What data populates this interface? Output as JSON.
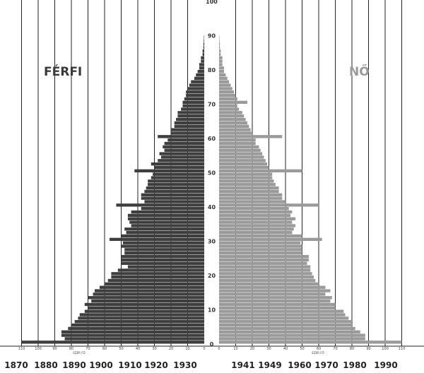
{
  "colors": {
    "male": "#3e3e3e",
    "female": "#9a9a9a",
    "grid": "#222222",
    "male_label": "#3a3a3a",
    "female_label": "#9a9a9a",
    "year_highlight": "#a3a3a3"
  },
  "chart_data": {
    "type": "bar",
    "orientation": "horizontal population pyramid",
    "labels": {
      "left": "FÉRFI",
      "right": "NŐ"
    },
    "y_ticks": [
      0,
      10,
      20,
      30,
      40,
      50,
      60,
      70,
      80,
      90,
      100
    ],
    "ylim": [
      0,
      100
    ],
    "x_ticks_left": [
      "0",
      "10",
      "20",
      "30",
      "40",
      "50",
      "60",
      "70",
      "80",
      "90",
      "100",
      "110"
    ],
    "x_ticks_right": [
      "0",
      "10",
      "20",
      "30",
      "40",
      "50",
      "60",
      "70",
      "80",
      "90",
      "100",
      "110"
    ],
    "x_unit_label": "EZER FŐ",
    "xlim": [
      0,
      110
    ],
    "years_left": [
      "1870",
      "1880",
      "1890",
      "1900",
      "1910",
      "1920",
      "1930"
    ],
    "years_right": [
      "1941",
      "1949",
      "1960",
      "1970",
      "1980",
      "1990"
    ],
    "highlighted_year": "1890",
    "ages": [
      0,
      1,
      2,
      3,
      4,
      5,
      6,
      7,
      8,
      9,
      10,
      11,
      12,
      13,
      14,
      15,
      16,
      17,
      18,
      19,
      20,
      21,
      22,
      23,
      24,
      25,
      26,
      27,
      28,
      29,
      30,
      31,
      32,
      33,
      34,
      35,
      36,
      37,
      38,
      39,
      40,
      41,
      42,
      43,
      44,
      45,
      46,
      47,
      48,
      49,
      50,
      51,
      52,
      53,
      54,
      55,
      56,
      57,
      58,
      59,
      60,
      61,
      62,
      63,
      64,
      65,
      66,
      67,
      68,
      69,
      70,
      71,
      72,
      73,
      74,
      75,
      76,
      77,
      78,
      79,
      80,
      81,
      82,
      83,
      84,
      85,
      86,
      87,
      88,
      89
    ],
    "series": [
      {
        "side": "left",
        "values": [
          110,
          84,
          86,
          86,
          82,
          80,
          78,
          76,
          75,
          72,
          70,
          72,
          68,
          70,
          67,
          66,
          63,
          60,
          58,
          56,
          56,
          52,
          46,
          50,
          50,
          50,
          48,
          48,
          50,
          49,
          57,
          50,
          47,
          48,
          44,
          45,
          46,
          46,
          44,
          38,
          53,
          36,
          38,
          38,
          36,
          35,
          34,
          34,
          32,
          31,
          42,
          30,
          32,
          28,
          26,
          27,
          24,
          25,
          24,
          22,
          28,
          20,
          20,
          18,
          18,
          17,
          16,
          16,
          14,
          13,
          13,
          12,
          11,
          11,
          10,
          9,
          8,
          6,
          5,
          4,
          3,
          3,
          2,
          2,
          1,
          1,
          0.5,
          0.5,
          0.3,
          0.2
        ]
      },
      {
        "side": "right",
        "values": [
          110,
          88,
          88,
          85,
          82,
          80,
          80,
          78,
          76,
          75,
          70,
          70,
          67,
          68,
          64,
          67,
          64,
          60,
          58,
          57,
          56,
          55,
          55,
          53,
          54,
          54,
          50,
          50,
          50,
          49,
          62,
          50,
          44,
          45,
          46,
          44,
          46,
          43,
          44,
          42,
          60,
          40,
          38,
          38,
          36,
          36,
          34,
          33,
          32,
          32,
          50,
          30,
          29,
          28,
          27,
          26,
          25,
          24,
          22,
          22,
          38,
          20,
          19,
          18,
          17,
          16,
          15,
          14,
          12,
          11,
          17,
          11,
          10,
          9,
          8,
          7,
          6,
          5,
          4,
          3,
          3,
          2,
          2,
          2,
          1,
          1,
          0.5,
          0.5,
          0.3,
          0.2
        ]
      }
    ]
  }
}
